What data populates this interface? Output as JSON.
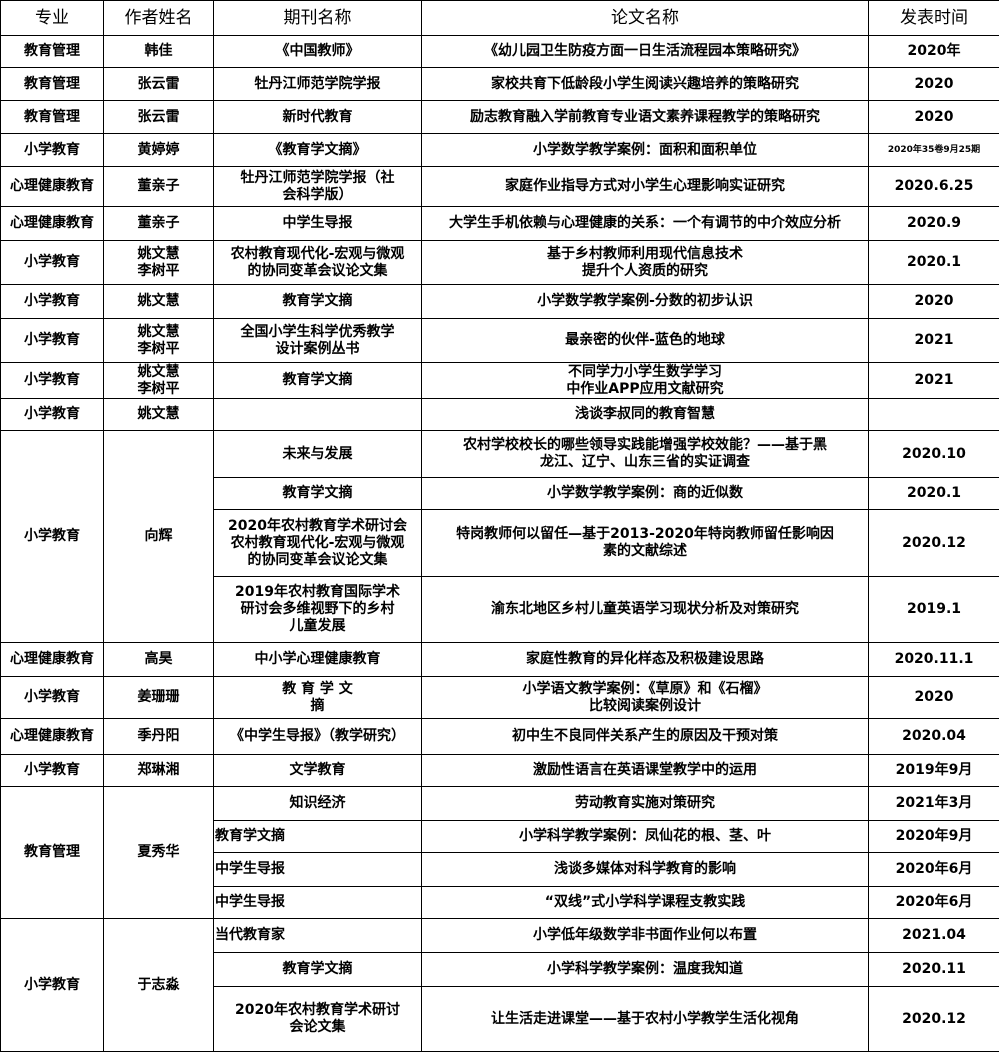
{
  "headers": [
    "专业",
    "作者姓名",
    "期刊名称",
    "论文名称",
    "发表时间"
  ],
  "groups": [
    {
      "major": "教育管理",
      "author": "韩佳",
      "papers": [
        {
          "journal": "《中国教师》",
          "title": "《幼儿园卫生防疫方面一日生活流程园本策略研究》",
          "date": "2020年"
        }
      ]
    },
    {
      "major": "教育管理",
      "author": "张云雷",
      "papers": [
        {
          "journal": "牡丹江师范学院学报",
          "title": "家校共育下低龄段小学生阅读兴趣培养的策略研究",
          "date": "2020"
        }
      ]
    },
    {
      "major": "教育管理",
      "author": "张云雷",
      "papers": [
        {
          "journal": "新时代教育",
          "title": "励志教育融入学前教育专业语文素养课程教学的策略研究",
          "date": "2020"
        }
      ]
    },
    {
      "major": "小学教育",
      "author": "黄婷婷",
      "papers": [
        {
          "journal": "《教育学文摘》",
          "title": "小学数学教学案例：面积和面积单位",
          "date": "2020年35卷9月25期"
        }
      ]
    },
    {
      "major": "心理健康教育",
      "author": "董亲子",
      "papers": [
        {
          "journal": "牡丹江师范学院学报（社\n会科学版）",
          "title": "家庭作业指导方式对小学生心理影响实证研究",
          "date": "2020.6.25"
        }
      ]
    },
    {
      "major": "心理健康教育",
      "author": "董亲子",
      "papers": [
        {
          "journal": "中学生导报",
          "title": "大学生手机依赖与心理健康的关系：一个有调节的中介效应分析",
          "date": "2020.9"
        }
      ]
    },
    {
      "major": "小学教育",
      "author": "姚文慧\n李树平",
      "papers": [
        {
          "journal": "农村教育现代化-宏观与微观\n的协同变革会议论文集",
          "title": "基于乡村教师利用现代信息技术\n提升个人资质的研究",
          "date": "2020.1"
        }
      ]
    },
    {
      "major": "小学教育",
      "author": "姚文慧",
      "papers": [
        {
          "journal": "教育学文摘",
          "title": "小学数学教学案例-分数的初步认识",
          "date": "2020"
        }
      ]
    },
    {
      "major": "小学教育",
      "author": "姚文慧\n李树平",
      "papers": [
        {
          "journal": "全国小学生科学优秀教学\n设计案例丛书",
          "title": "最亲密的伙伴-蓝色的地球",
          "date": "2021"
        }
      ]
    },
    {
      "major": "小学教育",
      "author": "姚文慧\n李树平",
      "papers": [
        {
          "journal": "教育学文摘",
          "title": "不同学力小学生数学学习\n中作业APP应用文献研究",
          "date": "2021"
        }
      ]
    },
    {
      "major": "小学教育",
      "author": "姚文慧",
      "papers": [
        {
          "journal": "",
          "title": "浅谈李叔同的教育智慧",
          "date": ""
        }
      ]
    },
    {
      "major": "小学教育",
      "author": "向辉",
      "papers": [
        {
          "journal": "未来与发展",
          "title": "农村学校校长的哪些领导实践能增强学校效能？——基于黑\n龙江、辽宁、山东三省的实证调查",
          "date": "2020.10"
        },
        {
          "journal": "教育学文摘",
          "title": "小学数学教学案例：商的近似数",
          "date": "2020.1"
        },
        {
          "journal": "2020年农村教育学术研讨会\n农村教育现代化-宏观与微观\n的协同变革会议论文集",
          "title": "特岗教师何以留任—基于2013-2020年特岗教师留任影响因\n素的文献综述",
          "date": "2020.12"
        },
        {
          "journal": "2019年农村教育国际学术\n研讨会多维视野下的乡村\n儿童发展",
          "title": "渝东北地区乡村儿童英语学习现状分析及对策研究",
          "date": "2019.1"
        }
      ]
    },
    {
      "major": "心理健康教育",
      "author": "高昊",
      "papers": [
        {
          "journal": "中小学心理健康教育",
          "title": "家庭性教育的异化样态及积极建设思路",
          "date": "2020.11.1"
        }
      ]
    },
    {
      "major": "小学教育",
      "author": "姜珊珊",
      "papers": [
        {
          "journal": "教 育 学 文\n摘",
          "title": "小学语文教学案例：《草原》和《石榴》\n比较阅读案例设计",
          "date": "2020"
        }
      ]
    },
    {
      "major": "心理健康教育",
      "author": "季丹阳",
      "papers": [
        {
          "journal": "《中学生导报》（教学研究）",
          "title": "初中生不良同伴关系产生的原因及干预对策",
          "date": "2020.04"
        }
      ]
    },
    {
      "major": "小学教育",
      "author": "郑琳湘",
      "papers": [
        {
          "journal": "文学教育",
          "title": "激励性语言在英语课堂教学中的运用",
          "date": "2019年9月"
        }
      ]
    },
    {
      "major": "教育管理",
      "author": "夏秀华",
      "papers": [
        {
          "journal": "知识经济",
          "title": "劳动教育实施对策研究",
          "date": "2021年3月"
        },
        {
          "journal": "教育学文摘",
          "title": "小学科学教学案例：凤仙花的根、茎、叶",
          "date": "2020年9月"
        },
        {
          "journal": "中学生导报",
          "title": "浅谈多媒体对科学教育的影响",
          "date": "2020年6月"
        },
        {
          "journal": "中学生导报",
          "title": "“双线”式小学科学课程支教实践",
          "date": "2020年6月"
        }
      ]
    },
    {
      "major": "小学教育",
      "author": "于志淼",
      "papers": [
        {
          "journal": "当代教育家",
          "title": "小学低年级数学非书面作业何以布置",
          "date": "2021.04"
        },
        {
          "journal": "教育学文摘",
          "title": "小学科学教学案例：温度我知道",
          "date": "2020.11"
        },
        {
          "journal": "2020年农村教育学术研讨\n会论文集",
          "title": "让生活走进课堂——基于农村小学教学生活化视角",
          "date": "2020.12"
        }
      ]
    }
  ]
}
